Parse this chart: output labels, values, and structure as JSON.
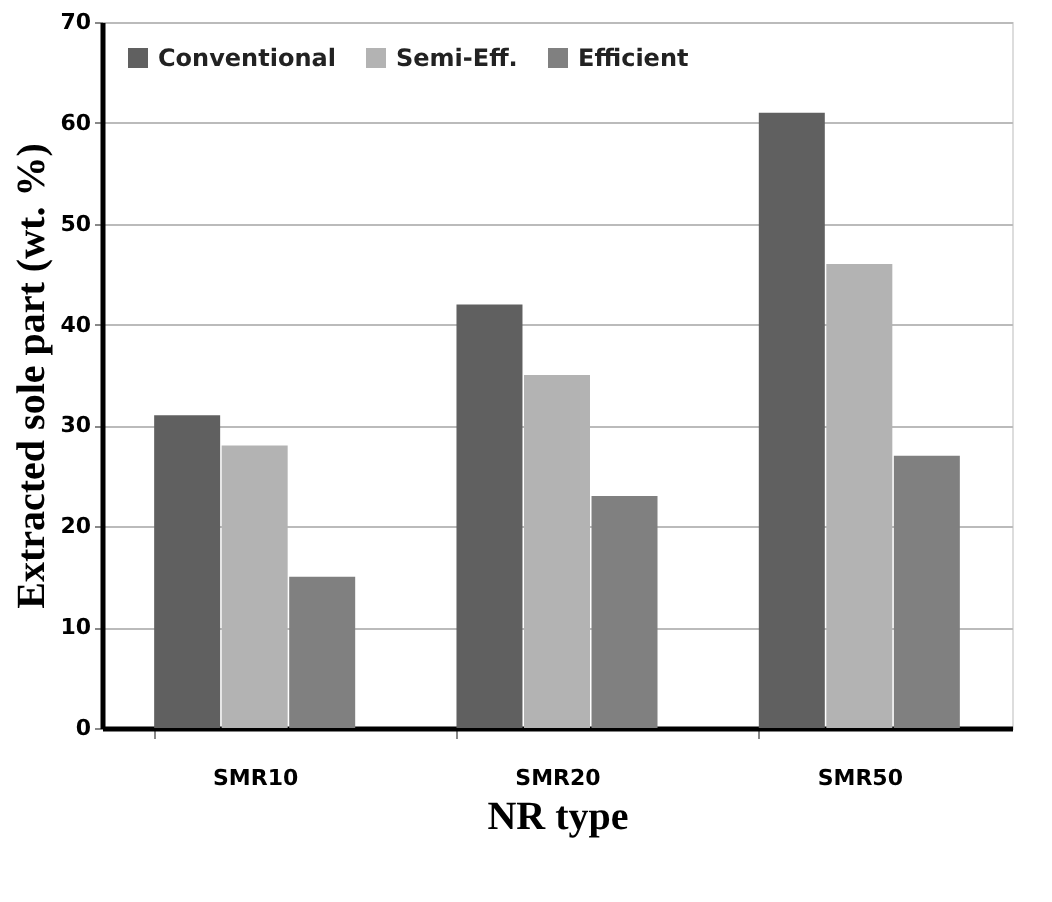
{
  "chart_data": {
    "type": "bar",
    "xlabel": "NR type",
    "ylabel": "Extracted sole part (wt. %)",
    "categories": [
      "SMR10",
      "SMR20",
      "SMR50"
    ],
    "series": [
      {
        "name": "Conventional",
        "color": "#606060",
        "values": [
          31,
          42,
          61
        ]
      },
      {
        "name": "Semi-Eff.",
        "color": "#b3b3b3",
        "values": [
          28,
          35,
          46
        ]
      },
      {
        "name": "Efficient",
        "color": "#808080",
        "values": [
          15,
          23,
          27
        ]
      }
    ],
    "ylim": [
      0,
      70
    ],
    "yticks": [
      0,
      10,
      20,
      30,
      40,
      50,
      60,
      70
    ],
    "grid": "y",
    "legend": "top left"
  }
}
